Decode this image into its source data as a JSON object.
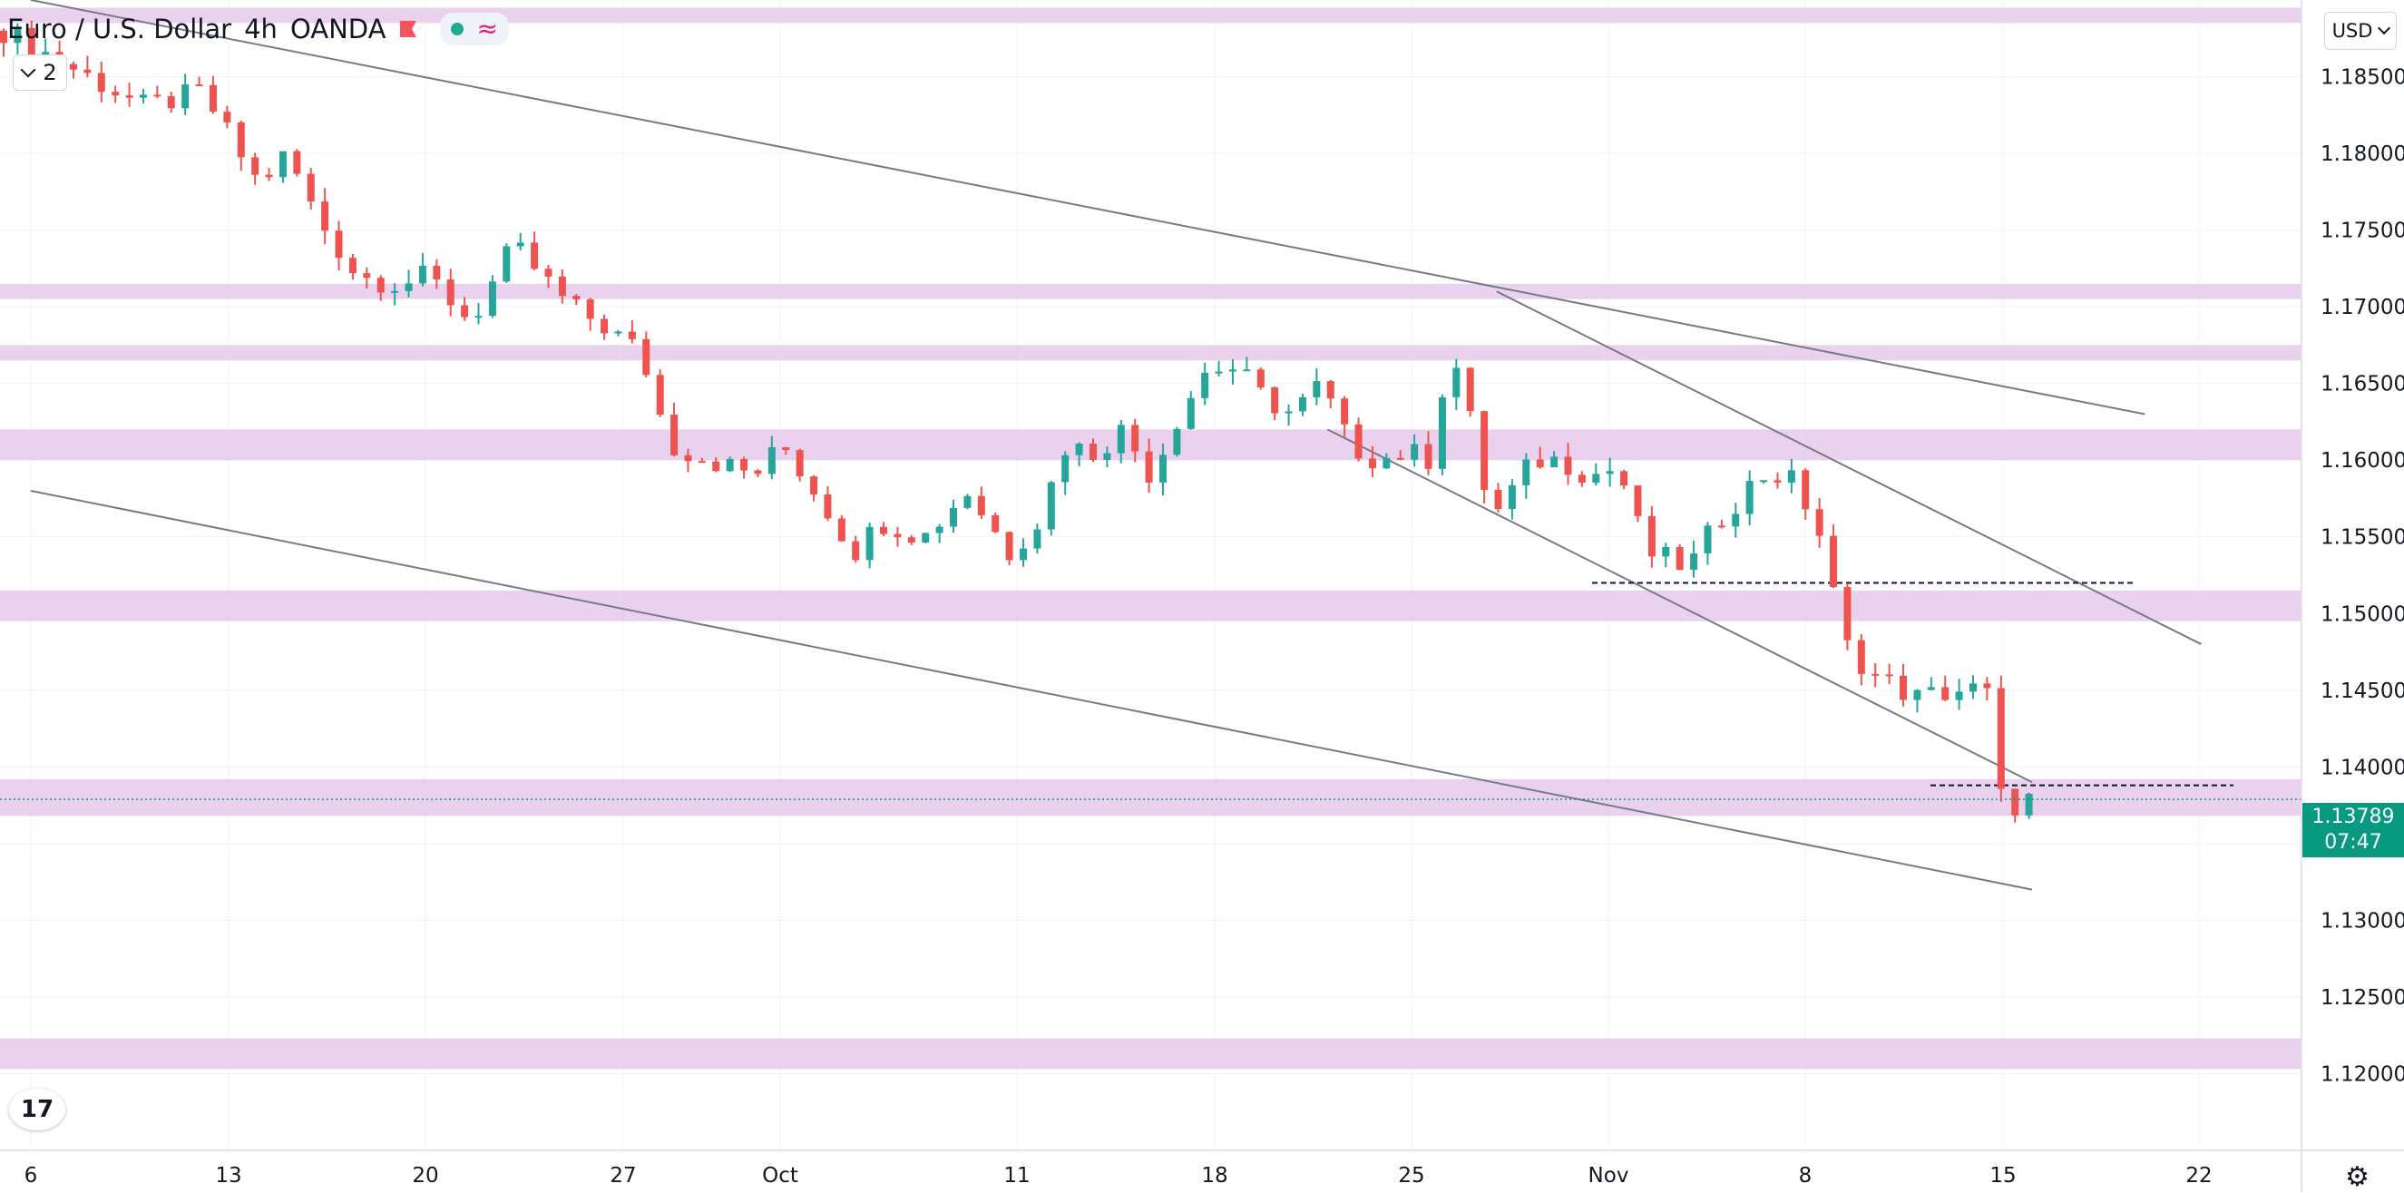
{
  "header": {
    "symbol": "Euro / U.S. Dollar",
    "interval": "4h",
    "exchange": "OANDA",
    "collapse_count": "2",
    "currency": "USD"
  },
  "price_tag": {
    "price": "1.13789",
    "countdown": "07:47"
  },
  "colors": {
    "up": "#26a69a",
    "down": "#ef5350",
    "zone": "#e1bee7",
    "trendline": "#787b86",
    "price_tag": "#089981"
  },
  "icons": {
    "logo": "tradingview-logo-icon",
    "settings": "settings-gear-icon",
    "flag": "flag-icon",
    "wave": "wave-icon"
  },
  "chart_data": {
    "type": "candlestick",
    "title": "Euro / U.S. Dollar · 4h · OANDA",
    "y_axis": {
      "min": 1.115,
      "max": 1.19,
      "ticks": [
        "1.18500",
        "1.18000",
        "1.17500",
        "1.17000",
        "1.16500",
        "1.16000",
        "1.15500",
        "1.15000",
        "1.14500",
        "1.14000",
        "1.13500",
        "1.13000",
        "1.12500",
        "1.12000"
      ]
    },
    "x_axis": {
      "ticks": [
        "6",
        "13",
        "20",
        "27",
        "Oct",
        "11",
        "18",
        "25",
        "Nov",
        "8",
        "15",
        "22"
      ]
    },
    "grid": true,
    "last_price": 1.13789,
    "path": [
      [
        0,
        1.188
      ],
      [
        6,
        1.185
      ],
      [
        10,
        1.183
      ],
      [
        14,
        1.184
      ],
      [
        18,
        1.178
      ],
      [
        20,
        1.18
      ],
      [
        22,
        1.176
      ],
      [
        25,
        1.172
      ],
      [
        28,
        1.1715
      ],
      [
        30,
        1.172
      ],
      [
        33,
        1.169
      ],
      [
        36,
        1.174
      ],
      [
        38,
        1.172
      ],
      [
        40,
        1.17
      ],
      [
        42,
        1.169
      ],
      [
        45,
        1.167
      ],
      [
        47,
        1.161
      ],
      [
        50,
        1.16
      ],
      [
        53,
        1.159
      ],
      [
        55,
        1.161
      ],
      [
        58,
        1.157
      ],
      [
        60,
        1.154
      ],
      [
        62,
        1.156
      ],
      [
        65,
        1.155
      ],
      [
        68,
        1.158
      ],
      [
        71,
        1.154
      ],
      [
        73,
        1.156
      ],
      [
        75,
        1.161
      ],
      [
        77,
        1.1605
      ],
      [
        79,
        1.162
      ],
      [
        81,
        1.159
      ],
      [
        83,
        1.163
      ],
      [
        85,
        1.166
      ],
      [
        87,
        1.166
      ],
      [
        89,
        1.164
      ],
      [
        91,
        1.163
      ],
      [
        93,
        1.165
      ],
      [
        95,
        1.161
      ],
      [
        97,
        1.16
      ],
      [
        99,
        1.1605
      ],
      [
        101,
        1.16
      ],
      [
        102,
        1.168
      ],
      [
        104,
        1.161
      ],
      [
        105,
        1.156
      ],
      [
        108,
        1.16
      ],
      [
        110,
        1.16
      ],
      [
        112,
        1.159
      ],
      [
        114,
        1.1595
      ],
      [
        116,
        1.154
      ],
      [
        119,
        1.153
      ],
      [
        121,
        1.156
      ],
      [
        124,
        1.159
      ],
      [
        126,
        1.159
      ],
      [
        128,
        1.156
      ],
      [
        130,
        1.148
      ],
      [
        132,
        1.146
      ],
      [
        135,
        1.1445
      ],
      [
        138,
        1.145
      ],
      [
        140,
        1.145
      ],
      [
        141,
        1.138
      ],
      [
        142,
        1.1375
      ],
      [
        143,
        1.13789
      ]
    ],
    "zones": [
      [
        1.1885,
        1.1895
      ],
      [
        1.1705,
        1.1715
      ],
      [
        1.1665,
        1.1675
      ],
      [
        1.16,
        1.162
      ],
      [
        1.1495,
        1.1515
      ],
      [
        1.1368,
        1.1392
      ],
      [
        1.1203,
        1.1223
      ]
    ],
    "trendlines": [
      {
        "from": [
          "Sep 6",
          1.19
        ],
        "to": [
          "Nov 20",
          1.163
        ]
      },
      {
        "from": [
          "Sep 6",
          1.158
        ],
        "to": [
          "Nov 16",
          1.132
        ]
      },
      {
        "from": [
          "Oct 28",
          1.171
        ],
        "to": [
          "Nov 22",
          1.148
        ]
      },
      {
        "from": [
          "Oct 22",
          1.162
        ],
        "to": [
          "Nov 16",
          1.139
        ]
      }
    ],
    "horizontal_levels": [
      1.152,
      1.1388
    ],
    "annotations": []
  }
}
